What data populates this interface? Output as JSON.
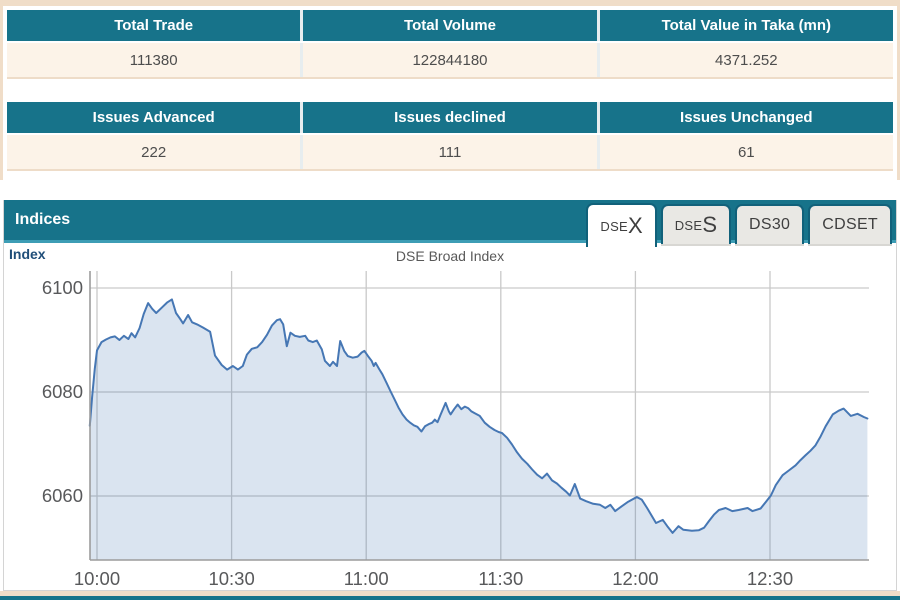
{
  "summary_tables": [
    {
      "headers": [
        "Total Trade",
        "Total Volume",
        "Total Value in Taka (mn)"
      ],
      "values": [
        "111380",
        "122844180",
        "4371.252"
      ]
    },
    {
      "headers": [
        "Issues Advanced",
        "Issues declined",
        "Issues Unchanged"
      ],
      "values": [
        "222",
        "111",
        "61"
      ]
    }
  ],
  "indices": {
    "title": "Indices",
    "tabs": [
      {
        "prefix": "DSE",
        "suffix": "X",
        "active": true
      },
      {
        "prefix": "DSE",
        "suffix": "S",
        "active": false
      },
      {
        "label": "DS30",
        "active": false
      },
      {
        "label": "CDSET",
        "active": false
      }
    ],
    "axis_label": "Index",
    "chart_title": "DSE Broad Index"
  },
  "colors": {
    "teal": "#17738a",
    "teal_light": "#3d9db5",
    "cream": "#f0ddc8",
    "row_bg": "#fcf3e8",
    "line_blue": "#4677b4",
    "area_fill": "rgba(70,119,180,0.20)",
    "grid": "#c9c9c9",
    "axis": "#9c9c9c",
    "tick_text": "#58595b"
  },
  "chart_data": {
    "type": "area",
    "title": "DSE Broad Index",
    "series_name": "DSEX",
    "x_unit": "minutes since 10:00",
    "x_start_label": "10:00",
    "x_end_label": "12:53",
    "y_ticks": [
      6060,
      6080,
      6100
    ],
    "x_ticks": [
      {
        "t": 0,
        "label": "10:00"
      },
      {
        "t": 30,
        "label": "10:30"
      },
      {
        "t": 60,
        "label": "11:00"
      },
      {
        "t": 90,
        "label": "11:30"
      },
      {
        "t": 120,
        "label": "12:00"
      },
      {
        "t": 150,
        "label": "12:30"
      }
    ],
    "y_range_visible": [
      6048,
      6103
    ],
    "points": [
      [
        -1.6,
        6073.5
      ],
      [
        -1.1,
        6079
      ],
      [
        -0.5,
        6084.5
      ],
      [
        0,
        6088
      ],
      [
        1,
        6089.6
      ],
      [
        2,
        6090.1
      ],
      [
        3,
        6090.5
      ],
      [
        4,
        6090.7
      ],
      [
        5,
        6090
      ],
      [
        6,
        6090.8
      ],
      [
        7,
        6090.2
      ],
      [
        7.7,
        6091.3
      ],
      [
        8.5,
        6090.5
      ],
      [
        9.5,
        6092.3
      ],
      [
        10.4,
        6095
      ],
      [
        11.4,
        6097.1
      ],
      [
        12.3,
        6096
      ],
      [
        13.2,
        6095.2
      ],
      [
        14.4,
        6096.2
      ],
      [
        15.6,
        6097.2
      ],
      [
        16.7,
        6097.8
      ],
      [
        17.6,
        6095.2
      ],
      [
        18.5,
        6094.1
      ],
      [
        19.2,
        6093.2
      ],
      [
        20.3,
        6094.8
      ],
      [
        21.2,
        6093.4
      ],
      [
        22.3,
        6093
      ],
      [
        23.6,
        6092.4
      ],
      [
        25.2,
        6091.6
      ],
      [
        26.3,
        6087
      ],
      [
        27.8,
        6085.2
      ],
      [
        29,
        6084.3
      ],
      [
        30.3,
        6085
      ],
      [
        31.4,
        6084.3
      ],
      [
        32.5,
        6085
      ],
      [
        33.4,
        6087.2
      ],
      [
        34.5,
        6088.3
      ],
      [
        35.7,
        6088.6
      ],
      [
        36.8,
        6089.6
      ],
      [
        37.9,
        6091
      ],
      [
        39,
        6092.8
      ],
      [
        40.1,
        6093.8
      ],
      [
        40.8,
        6094
      ],
      [
        41.5,
        6093
      ],
      [
        42.3,
        6088.8
      ],
      [
        43.1,
        6091.4
      ],
      [
        44.1,
        6090.8
      ],
      [
        45.2,
        6090.6
      ],
      [
        46.4,
        6090.8
      ],
      [
        47.1,
        6089.9
      ],
      [
        48.1,
        6089.6
      ],
      [
        49,
        6089.9
      ],
      [
        50.1,
        6088.2
      ],
      [
        50.8,
        6086
      ],
      [
        51.9,
        6085
      ],
      [
        52.6,
        6085.8
      ],
      [
        53.5,
        6085
      ],
      [
        54.2,
        6089.8
      ],
      [
        55.1,
        6087.9
      ],
      [
        55.9,
        6086.9
      ],
      [
        57,
        6086.6
      ],
      [
        58.1,
        6086.8
      ],
      [
        59,
        6087.6
      ],
      [
        59.6,
        6087.9
      ],
      [
        60.4,
        6086.9
      ],
      [
        61.2,
        6086
      ],
      [
        61.7,
        6085
      ],
      [
        62.1,
        6085.6
      ],
      [
        62.9,
        6084.4
      ],
      [
        63.6,
        6083.4
      ],
      [
        64.5,
        6081.8
      ],
      [
        65.4,
        6080.2
      ],
      [
        66.3,
        6078.6
      ],
      [
        67.2,
        6077
      ],
      [
        68.1,
        6075.7
      ],
      [
        69,
        6074.7
      ],
      [
        69.8,
        6074.1
      ],
      [
        70.6,
        6073.6
      ],
      [
        71.4,
        6073.3
      ],
      [
        72.3,
        6072.4
      ],
      [
        73.1,
        6073.4
      ],
      [
        73.9,
        6073.8
      ],
      [
        74.7,
        6074.1
      ],
      [
        75.3,
        6074.7
      ],
      [
        75.9,
        6074.2
      ],
      [
        76.6,
        6075.7
      ],
      [
        77.3,
        6077.1
      ],
      [
        77.7,
        6077.9
      ],
      [
        78.4,
        6076.3
      ],
      [
        78.8,
        6075.7
      ],
      [
        79.6,
        6076.7
      ],
      [
        80.4,
        6077.6
      ],
      [
        81.2,
        6076.7
      ],
      [
        82,
        6077.2
      ],
      [
        82.7,
        6076.9
      ],
      [
        83.4,
        6076.3
      ],
      [
        84.2,
        6075.9
      ],
      [
        85.3,
        6075.4
      ],
      [
        86.4,
        6074.1
      ],
      [
        87.5,
        6073.3
      ],
      [
        88.6,
        6072.7
      ],
      [
        89.5,
        6072.3
      ],
      [
        90.3,
        6072.1
      ],
      [
        91.4,
        6071.2
      ],
      [
        92.5,
        6069.9
      ],
      [
        93.6,
        6068.4
      ],
      [
        94.7,
        6067.2
      ],
      [
        95.9,
        6066.2
      ],
      [
        97,
        6065.1
      ],
      [
        98.1,
        6064.1
      ],
      [
        99.2,
        6063.4
      ],
      [
        100.3,
        6064.3
      ],
      [
        101.4,
        6063
      ],
      [
        102.5,
        6062.4
      ],
      [
        103.5,
        6061.6
      ],
      [
        104.6,
        6060.8
      ],
      [
        105.4,
        6060.1
      ],
      [
        106.5,
        6062.3
      ],
      [
        107.7,
        6059.5
      ],
      [
        109,
        6059
      ],
      [
        110.6,
        6058.5
      ],
      [
        112.1,
        6058.3
      ],
      [
        113.3,
        6057.7
      ],
      [
        114.4,
        6058.3
      ],
      [
        115.5,
        6057.1
      ],
      [
        116.9,
        6058
      ],
      [
        118.4,
        6058.9
      ],
      [
        120.3,
        6059.8
      ],
      [
        121.4,
        6059.3
      ],
      [
        122.6,
        6057.7
      ],
      [
        124.6,
        6054.8
      ],
      [
        126.1,
        6055.4
      ],
      [
        127.1,
        6054.2
      ],
      [
        128.3,
        6052.9
      ],
      [
        129.6,
        6054.2
      ],
      [
        130.7,
        6053.5
      ],
      [
        132.6,
        6053.3
      ],
      [
        134.1,
        6053.4
      ],
      [
        135.3,
        6053.9
      ],
      [
        136.4,
        6055.2
      ],
      [
        137.5,
        6056.4
      ],
      [
        138.6,
        6057.3
      ],
      [
        140.1,
        6057.7
      ],
      [
        141.6,
        6057.1
      ],
      [
        143,
        6057.3
      ],
      [
        145,
        6057.7
      ],
      [
        146.1,
        6057.1
      ],
      [
        147.9,
        6057.6
      ],
      [
        149.1,
        6058.9
      ],
      [
        150.2,
        6060.1
      ],
      [
        151.3,
        6062.1
      ],
      [
        152.8,
        6064
      ],
      [
        154.2,
        6064.9
      ],
      [
        155.7,
        6065.9
      ],
      [
        156.8,
        6066.9
      ],
      [
        157.9,
        6067.8
      ],
      [
        159,
        6068.7
      ],
      [
        160.1,
        6069.7
      ],
      [
        161.3,
        6071.5
      ],
      [
        162.4,
        6073.4
      ],
      [
        164,
        6075.7
      ],
      [
        165.3,
        6076.4
      ],
      [
        166.4,
        6076.8
      ],
      [
        168,
        6075.4
      ],
      [
        169.5,
        6075.8
      ],
      [
        170.9,
        6075.2
      ],
      [
        171.7,
        6074.9
      ]
    ]
  }
}
